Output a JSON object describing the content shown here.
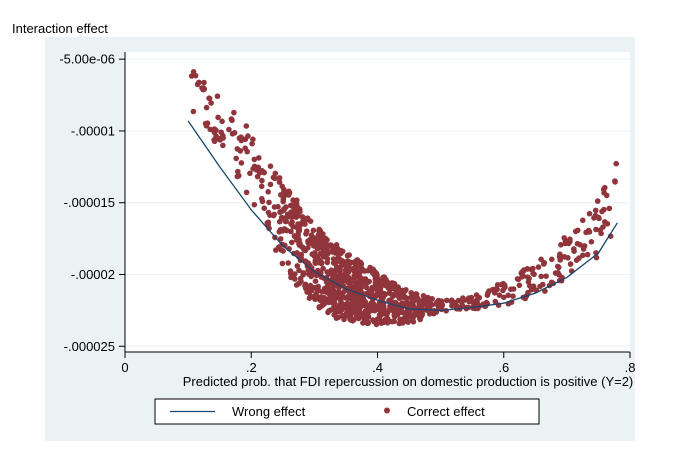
{
  "chart_data": {
    "type": "scatter",
    "title": "",
    "ylabel": "Interaction effect",
    "xlabel": "Predicted prob. that FDI repercussion on domestic production is positive (Y=2)",
    "xlim": [
      0,
      0.8
    ],
    "ylim": [
      -2.54e-05,
      -4.5e-06
    ],
    "x_ticks": [
      0,
      0.2,
      0.4,
      0.6,
      0.8
    ],
    "x_tick_labels": [
      "0",
      ".2",
      ".4",
      ".6",
      ".8"
    ],
    "y_ticks": [
      -5e-06,
      -1e-05,
      -1.5e-05,
      -2e-05,
      -2.5e-05
    ],
    "y_tick_labels": [
      "-5.00e-06",
      "-.00001",
      "-.000015",
      "-.00002",
      "-.000025"
    ],
    "grid": "horizontal",
    "legend_position": "bottom",
    "series": [
      {
        "name": "Wrong effect",
        "kind": "line",
        "color": "#1a476f",
        "points": [
          [
            0.1,
            -9.3e-06
          ],
          [
            0.15,
            -1.25e-05
          ],
          [
            0.2,
            -1.55e-05
          ],
          [
            0.25,
            -1.8e-05
          ],
          [
            0.3,
            -1.98e-05
          ],
          [
            0.35,
            -2.1e-05
          ],
          [
            0.4,
            -2.18e-05
          ],
          [
            0.45,
            -2.24e-05
          ],
          [
            0.5,
            -2.25e-05
          ],
          [
            0.55,
            -2.23e-05
          ],
          [
            0.6,
            -2.2e-05
          ],
          [
            0.65,
            -2.13e-05
          ],
          [
            0.7,
            -2.02e-05
          ],
          [
            0.75,
            -1.85e-05
          ],
          [
            0.78,
            -1.64e-05
          ]
        ]
      },
      {
        "name": "Correct effect",
        "kind": "scatter",
        "color": "#90353b",
        "band_x": [
          0.1,
          0.15,
          0.2,
          0.25,
          0.3,
          0.35,
          0.4,
          0.45,
          0.5,
          0.55,
          0.6,
          0.65,
          0.7,
          0.75,
          0.78
        ],
        "band_top": [
          -5.5e-06,
          -7.5e-06,
          -1e-05,
          -1.35e-05,
          -1.65e-05,
          -1.85e-05,
          -1.98e-05,
          -2.12e-05,
          -2.18e-05,
          -2.15e-05,
          -2.05e-05,
          -1.92e-05,
          -1.72e-05,
          -1.48e-05,
          -1.18e-05
        ],
        "band_bottom": [
          -8.5e-06,
          -1.15e-05,
          -1.5e-05,
          -1.95e-05,
          -2.25e-05,
          -2.33e-05,
          -2.35e-05,
          -2.34e-05,
          -2.27e-05,
          -2.25e-05,
          -2.22e-05,
          -2.15e-05,
          -2.05e-05,
          -1.9e-05,
          -1.7e-05
        ],
        "point_count": 1100
      }
    ]
  }
}
